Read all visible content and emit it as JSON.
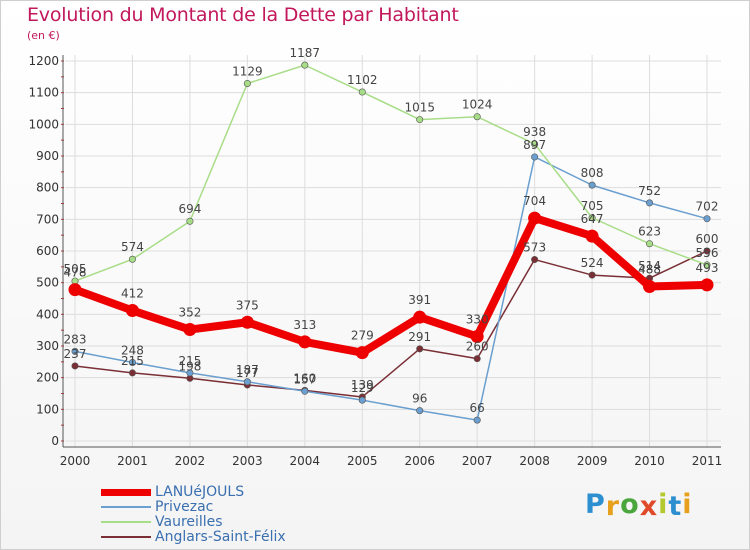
{
  "header": {
    "title": "Evolution du Montant de la Dette par Habitant",
    "unit": "(en €)"
  },
  "logo": {
    "text": "Proxiti",
    "letters": [
      "P",
      "r",
      "o",
      "x",
      "i",
      "t",
      "i"
    ],
    "colors": [
      "#2d8fd0",
      "#e7a01b",
      "#4aa63d",
      "#e04a2a",
      "#b3c92d",
      "#2d8fd0",
      "#e7a01b"
    ]
  },
  "colors": {
    "title": "#c2185b",
    "grid": "#dddddd",
    "axis": "#555555"
  },
  "chart_data": {
    "type": "line",
    "title": "Evolution du Montant de la Dette par Habitant",
    "subtitle": "(en €)",
    "xlabel": "",
    "ylabel": "",
    "x": [
      "2000",
      "2001",
      "2002",
      "2003",
      "2004",
      "2005",
      "2006",
      "2007",
      "2008",
      "2009",
      "2010",
      "2011"
    ],
    "ylim": [
      0,
      1200
    ],
    "yticks": [
      0,
      100,
      200,
      300,
      400,
      500,
      600,
      700,
      800,
      900,
      1000,
      1100,
      1200
    ],
    "grid": true,
    "legend_position": "bottom-left",
    "series": [
      {
        "name": "LANUéJOULS",
        "color": "#ee0000",
        "values": [
          478,
          412,
          352,
          375,
          313,
          279,
          391,
          330,
          704,
          647,
          488,
          493
        ]
      },
      {
        "name": "Privezac",
        "color": "#6a9fcf",
        "values": [
          283,
          248,
          215,
          187,
          157,
          129,
          96,
          66,
          897,
          808,
          752,
          702
        ]
      },
      {
        "name": "Vaureilles",
        "color": "#a8dd88",
        "values": [
          505,
          574,
          694,
          1129,
          1187,
          1102,
          1015,
          1024,
          938,
          705,
          623,
          556
        ]
      },
      {
        "name": "Anglars-Saint-Félix",
        "color": "#7a2f35",
        "values": [
          237,
          215,
          198,
          177,
          160,
          139,
          291,
          260,
          573,
          524,
          514,
          600
        ]
      }
    ]
  }
}
